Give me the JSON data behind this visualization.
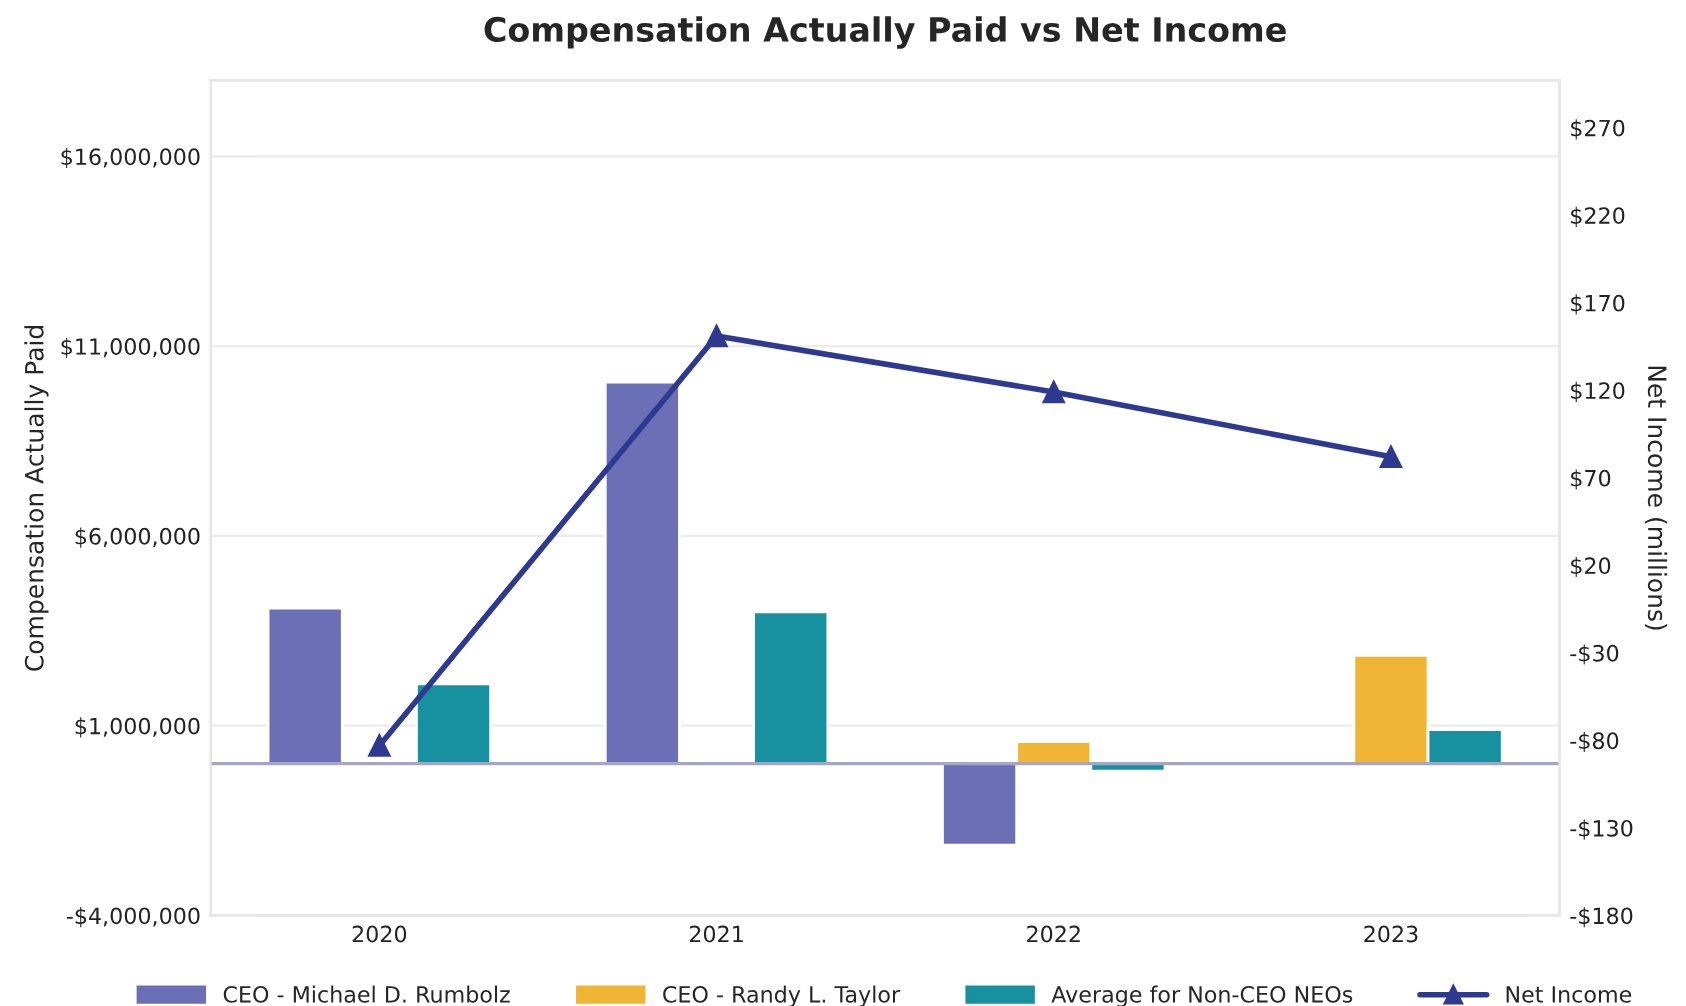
{
  "chart_data": {
    "type": "bar",
    "title": "Compensation Actually Paid vs Net Income",
    "ylabel": "Compensation Actually Paid",
    "y2label": "Net Income (millions)",
    "categories": [
      "2020",
      "2021",
      "2022",
      "2023"
    ],
    "series": [
      {
        "name": "CEO - Michael D. Rumbolz",
        "color": "#6a6fb6",
        "values": [
          4100000,
          10050000,
          -2150000,
          null
        ]
      },
      {
        "name": "CEO - Randy L. Taylor",
        "color": "#f0b535",
        "values": [
          null,
          null,
          580000,
          2850000
        ]
      },
      {
        "name": "Average for Non-CEO NEOs",
        "color": "#17909f",
        "values": [
          2100000,
          4000000,
          -200000,
          900000
        ]
      },
      {
        "name": "Net Income",
        "type": "line",
        "axis": "y2",
        "color": "#2e3a8f",
        "marker": "triangle",
        "values": [
          -83,
          151,
          119,
          82
        ]
      }
    ],
    "ylim": [
      -4000000,
      18000000
    ],
    "yticks": [
      {
        "value": -4000000,
        "label": "-$4,000,000"
      },
      {
        "value": 1000000,
        "label": "$1,000,000"
      },
      {
        "value": 6000000,
        "label": "$6,000,000"
      },
      {
        "value": 11000000,
        "label": "$11,000,000"
      },
      {
        "value": 16000000,
        "label": "$16,000,000"
      }
    ],
    "y2lim": [
      -180,
      297
    ],
    "y2ticks": [
      {
        "value": -180,
        "label": "-$180"
      },
      {
        "value": -130,
        "label": "-$130"
      },
      {
        "value": -80,
        "label": "-$80"
      },
      {
        "value": -30,
        "label": "-$30"
      },
      {
        "value": 20,
        "label": "$20"
      },
      {
        "value": 70,
        "label": "$70"
      },
      {
        "value": 120,
        "label": "$120"
      },
      {
        "value": 170,
        "label": "$170"
      },
      {
        "value": 220,
        "label": "$220"
      },
      {
        "value": 270,
        "label": "$270"
      }
    ],
    "ref_lines": [
      {
        "axis": "y",
        "value": 0,
        "color": "#a4a6c4"
      }
    ],
    "grid": "y",
    "legend": "bottom"
  }
}
